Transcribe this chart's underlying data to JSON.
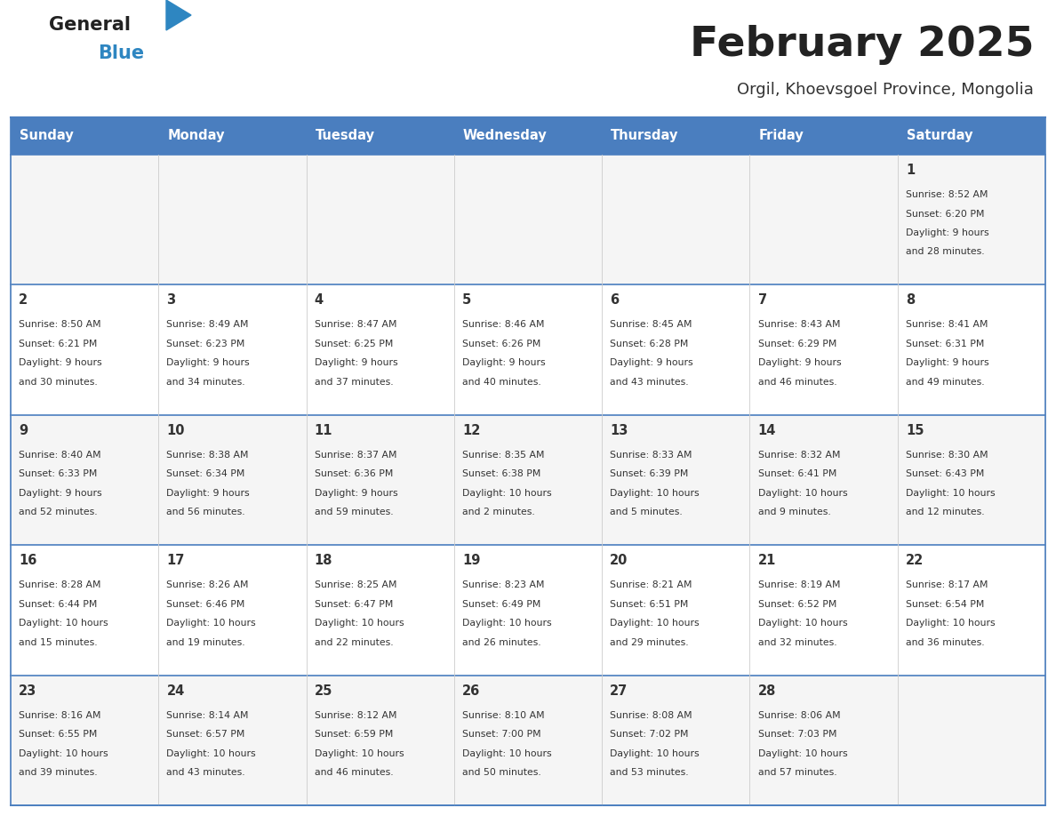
{
  "title": "February 2025",
  "subtitle": "Orgil, Khoevsgoel Province, Mongolia",
  "days_of_week": [
    "Sunday",
    "Monday",
    "Tuesday",
    "Wednesday",
    "Thursday",
    "Friday",
    "Saturday"
  ],
  "header_bg": "#4a7ebf",
  "header_text": "#FFFFFF",
  "row_bg_light": "#F5F5F5",
  "row_bg_white": "#FFFFFF",
  "cell_border_color": "#4a7ebf",
  "day_num_color": "#333333",
  "info_text_color": "#333333",
  "logo_general_color": "#222222",
  "logo_blue_color": "#2E86C1",
  "calendar_data": [
    [
      null,
      null,
      null,
      null,
      null,
      null,
      {
        "day": 1,
        "sunrise": "8:52 AM",
        "sunset": "6:20 PM",
        "daylight_hrs": 9,
        "daylight_min": 28
      }
    ],
    [
      {
        "day": 2,
        "sunrise": "8:50 AM",
        "sunset": "6:21 PM",
        "daylight_hrs": 9,
        "daylight_min": 30
      },
      {
        "day": 3,
        "sunrise": "8:49 AM",
        "sunset": "6:23 PM",
        "daylight_hrs": 9,
        "daylight_min": 34
      },
      {
        "day": 4,
        "sunrise": "8:47 AM",
        "sunset": "6:25 PM",
        "daylight_hrs": 9,
        "daylight_min": 37
      },
      {
        "day": 5,
        "sunrise": "8:46 AM",
        "sunset": "6:26 PM",
        "daylight_hrs": 9,
        "daylight_min": 40
      },
      {
        "day": 6,
        "sunrise": "8:45 AM",
        "sunset": "6:28 PM",
        "daylight_hrs": 9,
        "daylight_min": 43
      },
      {
        "day": 7,
        "sunrise": "8:43 AM",
        "sunset": "6:29 PM",
        "daylight_hrs": 9,
        "daylight_min": 46
      },
      {
        "day": 8,
        "sunrise": "8:41 AM",
        "sunset": "6:31 PM",
        "daylight_hrs": 9,
        "daylight_min": 49
      }
    ],
    [
      {
        "day": 9,
        "sunrise": "8:40 AM",
        "sunset": "6:33 PM",
        "daylight_hrs": 9,
        "daylight_min": 52
      },
      {
        "day": 10,
        "sunrise": "8:38 AM",
        "sunset": "6:34 PM",
        "daylight_hrs": 9,
        "daylight_min": 56
      },
      {
        "day": 11,
        "sunrise": "8:37 AM",
        "sunset": "6:36 PM",
        "daylight_hrs": 9,
        "daylight_min": 59
      },
      {
        "day": 12,
        "sunrise": "8:35 AM",
        "sunset": "6:38 PM",
        "daylight_hrs": 10,
        "daylight_min": 2
      },
      {
        "day": 13,
        "sunrise": "8:33 AM",
        "sunset": "6:39 PM",
        "daylight_hrs": 10,
        "daylight_min": 5
      },
      {
        "day": 14,
        "sunrise": "8:32 AM",
        "sunset": "6:41 PM",
        "daylight_hrs": 10,
        "daylight_min": 9
      },
      {
        "day": 15,
        "sunrise": "8:30 AM",
        "sunset": "6:43 PM",
        "daylight_hrs": 10,
        "daylight_min": 12
      }
    ],
    [
      {
        "day": 16,
        "sunrise": "8:28 AM",
        "sunset": "6:44 PM",
        "daylight_hrs": 10,
        "daylight_min": 15
      },
      {
        "day": 17,
        "sunrise": "8:26 AM",
        "sunset": "6:46 PM",
        "daylight_hrs": 10,
        "daylight_min": 19
      },
      {
        "day": 18,
        "sunrise": "8:25 AM",
        "sunset": "6:47 PM",
        "daylight_hrs": 10,
        "daylight_min": 22
      },
      {
        "day": 19,
        "sunrise": "8:23 AM",
        "sunset": "6:49 PM",
        "daylight_hrs": 10,
        "daylight_min": 26
      },
      {
        "day": 20,
        "sunrise": "8:21 AM",
        "sunset": "6:51 PM",
        "daylight_hrs": 10,
        "daylight_min": 29
      },
      {
        "day": 21,
        "sunrise": "8:19 AM",
        "sunset": "6:52 PM",
        "daylight_hrs": 10,
        "daylight_min": 32
      },
      {
        "day": 22,
        "sunrise": "8:17 AM",
        "sunset": "6:54 PM",
        "daylight_hrs": 10,
        "daylight_min": 36
      }
    ],
    [
      {
        "day": 23,
        "sunrise": "8:16 AM",
        "sunset": "6:55 PM",
        "daylight_hrs": 10,
        "daylight_min": 39
      },
      {
        "day": 24,
        "sunrise": "8:14 AM",
        "sunset": "6:57 PM",
        "daylight_hrs": 10,
        "daylight_min": 43
      },
      {
        "day": 25,
        "sunrise": "8:12 AM",
        "sunset": "6:59 PM",
        "daylight_hrs": 10,
        "daylight_min": 46
      },
      {
        "day": 26,
        "sunrise": "8:10 AM",
        "sunset": "7:00 PM",
        "daylight_hrs": 10,
        "daylight_min": 50
      },
      {
        "day": 27,
        "sunrise": "8:08 AM",
        "sunset": "7:02 PM",
        "daylight_hrs": 10,
        "daylight_min": 53
      },
      {
        "day": 28,
        "sunrise": "8:06 AM",
        "sunset": "7:03 PM",
        "daylight_hrs": 10,
        "daylight_min": 57
      },
      null
    ]
  ]
}
